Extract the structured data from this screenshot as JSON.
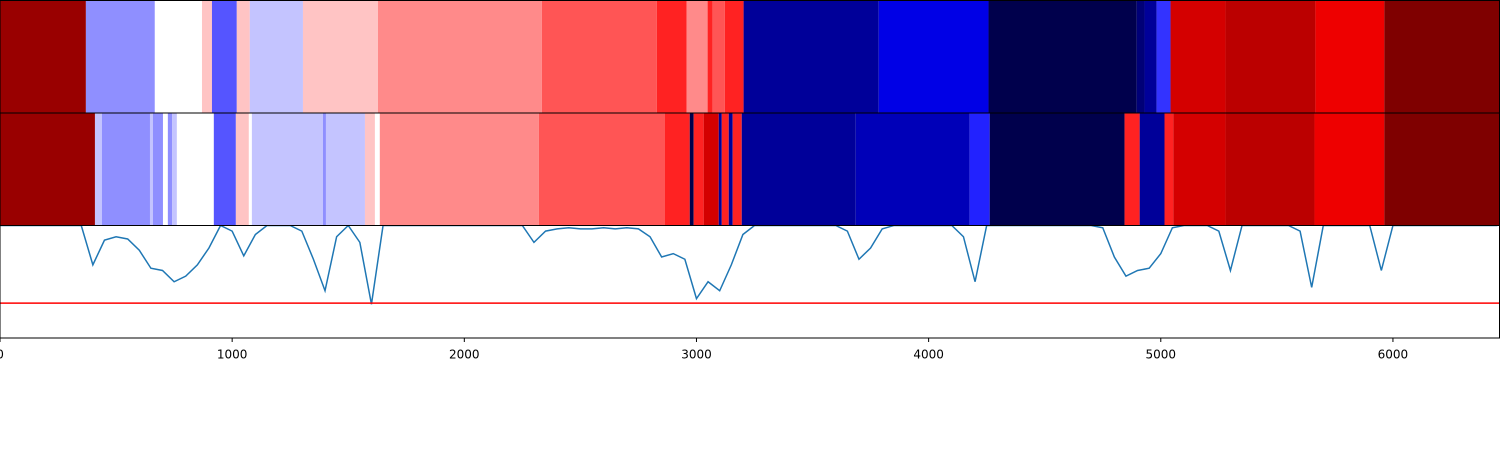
{
  "chart_data": [
    {
      "type": "segments",
      "xlim": [
        0,
        6459
      ],
      "edges": [
        0,
        370,
        667,
        870,
        913,
        1020,
        1076,
        1305,
        1628,
        2334,
        2829,
        2958,
        3048,
        3070,
        3122,
        3203,
        3785,
        4258,
        4896,
        4930,
        4982,
        5042,
        5279,
        5666,
        5963,
        6459
      ],
      "colors": [
        "#990000",
        "#8f8fff",
        "#ffffff",
        "#ffc4c4",
        "#5555ff",
        "#ffc4c4",
        "#c4c4ff",
        "#ffc4c4",
        "#ff8a8a",
        "#ff5555",
        "#ff2222",
        "#ff8a8a",
        "#ff2222",
        "#ff5555",
        "#ff2222",
        "#000099",
        "#0000e6",
        "#00004c",
        "#000077",
        "#000099",
        "#3333ff",
        "#d40000",
        "#bb0000",
        "#ee0000",
        "#7f0000"
      ]
    },
    {
      "type": "segments",
      "xlim": [
        0,
        6459
      ],
      "edges": [
        0,
        409,
        439,
        646,
        659,
        702,
        723,
        741,
        762,
        921,
        1016,
        1072,
        1085,
        1391,
        1404,
        1572,
        1615,
        1636,
        2321,
        2863,
        2971,
        2988,
        3031,
        3096,
        3109,
        3139,
        3156,
        3195,
        3686,
        4177,
        4263,
        4844,
        4909,
        5016,
        5054,
        5279,
        5662,
        5963,
        6459
      ],
      "colors": [
        "#990000",
        "#c4c4ff",
        "#8f8fff",
        "#c4c4ff",
        "#8f8fff",
        "#ffffff",
        "#8f8fff",
        "#c4c4ff",
        "#ffffff",
        "#5555ff",
        "#ffc4c4",
        "#ffffff",
        "#c4c4ff",
        "#8f8fff",
        "#c4c4ff",
        "#ffc4c4",
        "#ffffff",
        "#ff8a8a",
        "#ff5555",
        "#ff2222",
        "#00004c",
        "#ff2222",
        "#d40000",
        "#000099",
        "#ff2222",
        "#000099",
        "#ff2222",
        "#000099",
        "#0000b8",
        "#2222ff",
        "#00004c",
        "#ff2222",
        "#000099",
        "#ff2222",
        "#d40000",
        "#bb0000",
        "#ee0000",
        "#7f0000"
      ]
    },
    {
      "type": "line",
      "xlim": [
        0,
        6459
      ],
      "ylim": [
        0,
        1
      ],
      "color": "#1f77b4",
      "xticks": [
        0,
        1000,
        2000,
        3000,
        4000,
        5000,
        6000
      ],
      "hline": 0.31,
      "hline_color": "#ff0000",
      "x": [
        0,
        50,
        100,
        150,
        200,
        250,
        300,
        350,
        400,
        450,
        500,
        550,
        600,
        650,
        700,
        750,
        800,
        850,
        900,
        950,
        1000,
        1050,
        1100,
        1150,
        1200,
        1250,
        1300,
        1350,
        1400,
        1450,
        1500,
        1550,
        1600,
        1650,
        1700,
        1750,
        1800,
        1850,
        1900,
        1950,
        2000,
        2050,
        2100,
        2150,
        2200,
        2250,
        2300,
        2350,
        2400,
        2450,
        2500,
        2550,
        2600,
        2650,
        2700,
        2750,
        2800,
        2850,
        2900,
        2950,
        3000,
        3050,
        3100,
        3150,
        3200,
        3250,
        3300,
        3350,
        3400,
        3450,
        3500,
        3550,
        3600,
        3650,
        3700,
        3750,
        3800,
        3850,
        3900,
        3950,
        4000,
        4050,
        4100,
        4150,
        4200,
        4250,
        4300,
        4350,
        4400,
        4450,
        4500,
        4550,
        4600,
        4650,
        4700,
        4750,
        4800,
        4850,
        4900,
        4950,
        5000,
        5050,
        5100,
        5150,
        5200,
        5250,
        5300,
        5350,
        5400,
        5450,
        5500,
        5550,
        5600,
        5650,
        5700,
        5750,
        5800,
        5850,
        5900,
        5950,
        6000,
        6050,
        6100,
        6150,
        6200,
        6250,
        6300,
        6350,
        6400,
        6450
      ],
      "values": [
        1,
        1,
        1,
        1,
        1,
        1,
        1,
        1,
        0.65,
        0.87,
        0.9,
        0.88,
        0.78,
        0.62,
        0.6,
        0.5,
        0.55,
        0.65,
        0.8,
        1,
        0.95,
        0.73,
        0.92,
        1,
        1,
        1,
        0.95,
        0.7,
        0.42,
        0.9,
        1,
        0.85,
        0.3,
        1,
        1,
        1,
        1,
        1,
        1,
        1,
        1,
        1,
        1,
        1,
        1,
        1,
        0.85,
        0.95,
        0.97,
        0.98,
        0.97,
        0.97,
        0.98,
        0.97,
        0.98,
        0.97,
        0.9,
        0.72,
        0.75,
        0.7,
        0.35,
        0.5,
        0.42,
        0.65,
        0.92,
        1,
        1,
        1,
        1,
        1,
        1,
        1,
        1,
        0.95,
        0.7,
        0.8,
        0.97,
        1,
        1,
        1,
        1,
        1,
        1,
        0.9,
        0.5,
        1,
        1,
        1,
        1,
        1,
        1,
        1,
        1,
        1,
        1,
        0.98,
        0.72,
        0.55,
        0.6,
        0.62,
        0.75,
        0.98,
        1,
        1,
        1,
        0.95,
        0.6,
        1,
        1,
        1,
        1,
        1,
        0.95,
        0.45,
        1,
        1,
        1,
        1,
        1,
        0.6,
        1,
        1,
        1,
        1,
        1,
        1,
        1,
        1,
        1,
        1
      ]
    }
  ]
}
